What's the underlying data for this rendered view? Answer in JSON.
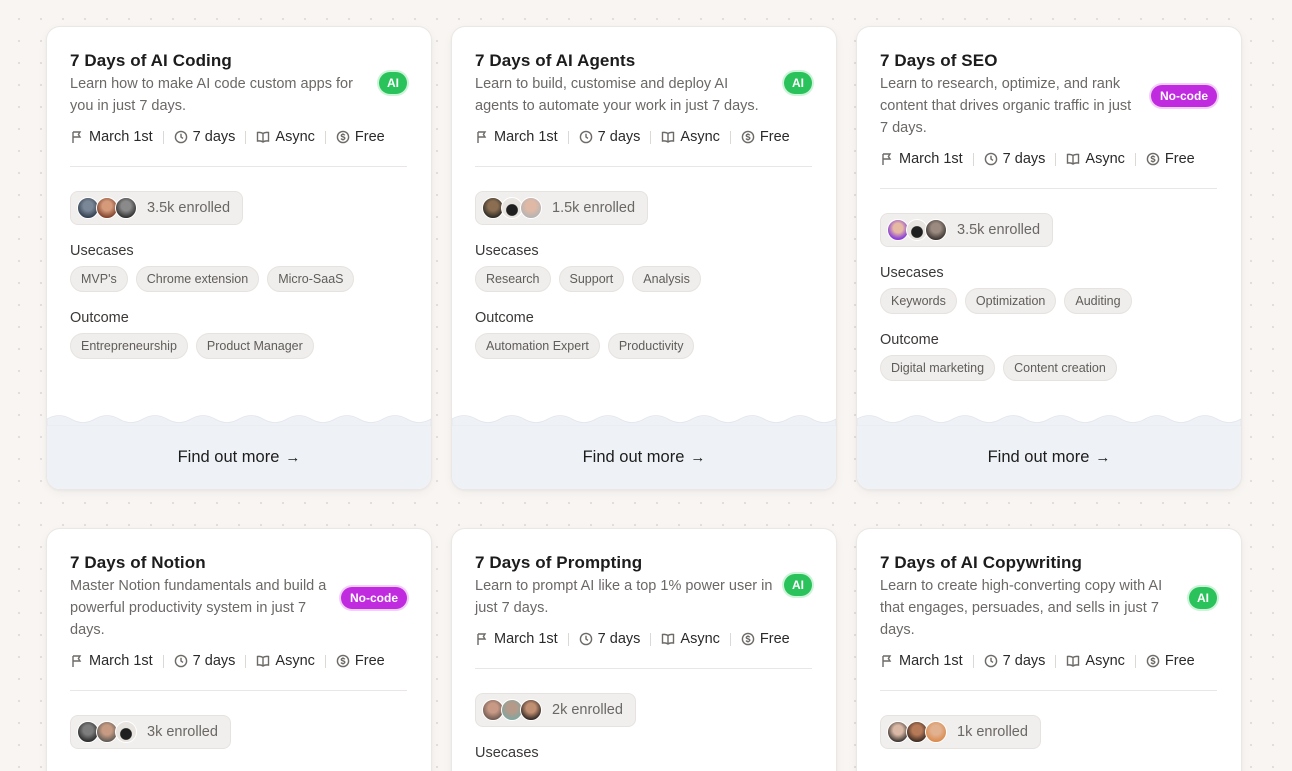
{
  "cards": [
    {
      "title": "7 Days of AI Coding",
      "description": "Learn how to make AI code custom apps for you in just 7 days.",
      "badge": "AI",
      "meta": {
        "date": "March 1st",
        "duration": "7 days",
        "format": "Async",
        "price": "Free"
      },
      "enrolled": "3.5k enrolled",
      "usecases_label": "Usecases",
      "usecases": [
        "MVP's",
        "Chrome extension",
        "Micro-SaaS"
      ],
      "outcome_label": "Outcome",
      "outcomes": [
        "Entrepreneurship",
        "Product Manager"
      ],
      "cta": "Find out more"
    },
    {
      "title": "7 Days of AI Agents",
      "description": "Learn to build, customise and deploy AI agents to automate your work in just 7 days.",
      "badge": "AI",
      "meta": {
        "date": "March 1st",
        "duration": "7 days",
        "format": "Async",
        "price": "Free"
      },
      "enrolled": "1.5k enrolled",
      "usecases_label": "Usecases",
      "usecases": [
        "Research",
        "Support",
        "Analysis"
      ],
      "outcome_label": "Outcome",
      "outcomes": [
        "Automation Expert",
        "Productivity"
      ],
      "cta": "Find out more"
    },
    {
      "title": "7 Days of SEO",
      "description": "Learn to research, optimize, and rank content that drives organic traffic in just 7 days.",
      "badge": "No-code",
      "meta": {
        "date": "March 1st",
        "duration": "7 days",
        "format": "Async",
        "price": "Free"
      },
      "enrolled": "3.5k enrolled",
      "usecases_label": "Usecases",
      "usecases": [
        "Keywords",
        "Optimization",
        "Auditing"
      ],
      "outcome_label": "Outcome",
      "outcomes": [
        "Digital marketing",
        "Content creation"
      ],
      "cta": "Find out more"
    },
    {
      "title": "7 Days of Notion",
      "description": "Master Notion fundamentals and build a powerful productivity system in just 7 days.",
      "badge": "No-code",
      "meta": {
        "date": "March 1st",
        "duration": "7 days",
        "format": "Async",
        "price": "Free"
      },
      "enrolled": "3k enrolled"
    },
    {
      "title": "7 Days of Prompting",
      "description": "Learn to prompt AI like a top 1% power user in just 7 days.",
      "badge": "AI",
      "meta": {
        "date": "March 1st",
        "duration": "7 days",
        "format": "Async",
        "price": "Free"
      },
      "enrolled": "2k enrolled",
      "usecases_label": "Usecases"
    },
    {
      "title": "7 Days of AI Copywriting",
      "description": "Learn to create high-converting copy with AI that engages, persuades, and sells in just 7 days.",
      "badge": "AI",
      "meta": {
        "date": "March 1st",
        "duration": "7 days",
        "format": "Async",
        "price": "Free"
      },
      "enrolled": "1k enrolled"
    }
  ],
  "colors": {
    "ai_badge": "#2ac25b",
    "nocode_badge": "#c02be0",
    "footer_bg": "#eef1f5",
    "page_bg": "#f8f5f3"
  },
  "icons": {
    "date": "flag-icon",
    "duration": "clock-icon",
    "format": "book-icon",
    "price": "coin-icon",
    "cta": "arrow-right-icon"
  }
}
